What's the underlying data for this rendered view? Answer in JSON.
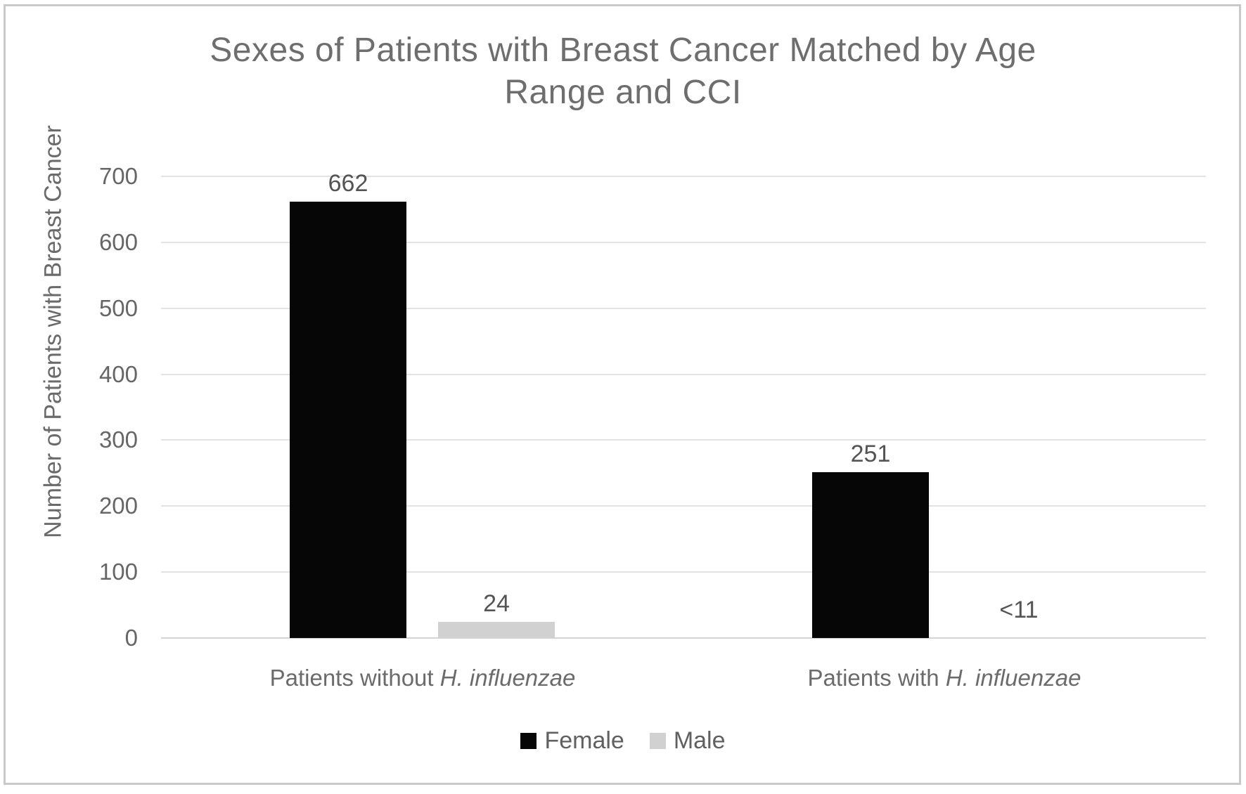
{
  "figure": {
    "title_lines": [
      "Sexes of Patients with Breast Cancer Matched by Age",
      "Range and CCI"
    ],
    "y_axis_title": "Number of Patients with Breast Cancer"
  },
  "colors": {
    "female_bar": "#060606",
    "male_bar": "#d1d1d1",
    "gridline": "#e2e2e2",
    "axis_line": "#d4d4d4",
    "frame_border": "#c9c9c9"
  },
  "legend": {
    "entries": [
      {
        "label": "Female",
        "color": "#060606"
      },
      {
        "label": "Male",
        "color": "#d1d1d1"
      }
    ]
  },
  "chart_data": {
    "type": "bar",
    "title": "Sexes of Patients with Breast Cancer Matched by Age Range and CCI",
    "xlabel": "",
    "ylabel": "Number of Patients with Breast Cancer",
    "ylim": [
      0,
      700
    ],
    "yticks": [
      0,
      100,
      200,
      300,
      400,
      500,
      600,
      700
    ],
    "grid": "horizontal",
    "legend_position": "bottom",
    "categories": [
      "Patients without H. influenzae",
      "Patients with H. influenzae"
    ],
    "categories_rich": [
      {
        "regular": "Patients without ",
        "italic": "H. influenzae"
      },
      {
        "regular": "Patients with ",
        "italic": "H. influenzae"
      }
    ],
    "series": [
      {
        "name": "Female",
        "values": [
          662,
          251
        ],
        "labels": [
          "662",
          "251"
        ]
      },
      {
        "name": "Male",
        "values": [
          24,
          null
        ],
        "labels": [
          "24",
          "<11"
        ]
      }
    ]
  }
}
